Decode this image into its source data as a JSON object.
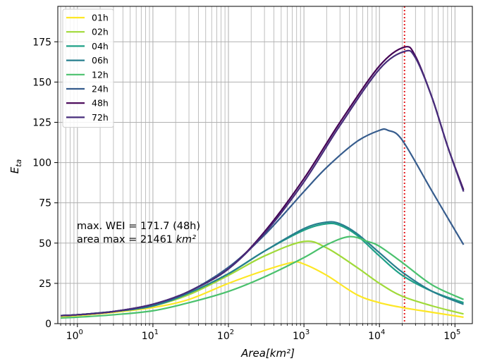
{
  "chart_data": {
    "type": "line",
    "title": "",
    "xlabel": "Area[km²]",
    "ylabel": "E_ta",
    "xscale": "log",
    "xlim": [
      0.55,
      170000
    ],
    "ylim": [
      0,
      197
    ],
    "xticks": [
      1,
      10,
      100,
      1000,
      10000,
      100000
    ],
    "xtick_labels": [
      {
        "base": "10",
        "exp": "0"
      },
      {
        "base": "10",
        "exp": "1"
      },
      {
        "base": "10",
        "exp": "2"
      },
      {
        "base": "10",
        "exp": "3"
      },
      {
        "base": "10",
        "exp": "4"
      },
      {
        "base": "10",
        "exp": "5"
      }
    ],
    "yticks": [
      0,
      25,
      50,
      75,
      100,
      125,
      150,
      175
    ],
    "ytick_labels": [
      "0",
      "25",
      "50",
      "75",
      "100",
      "125",
      "150",
      "175"
    ],
    "grid": true,
    "legend_position": "top-left",
    "vline": {
      "x": 21461,
      "color": "#e41a1c",
      "style": "dotted"
    },
    "annotation": {
      "line1": "max. WEI = 171.7 (48h)",
      "line2_prefix": "area max = 21461 ",
      "line2_unit": "km²"
    },
    "series": [
      {
        "name": "01h",
        "color": "#fde725",
        "x": [
          0.6,
          1,
          3,
          10,
          30,
          100,
          300,
          700,
          1000,
          2000,
          5000,
          10000,
          20000,
          50000,
          130000
        ],
        "y": [
          4.5,
          5,
          7,
          10,
          15,
          25,
          33,
          38,
          37,
          30,
          18,
          13,
          10,
          7,
          4
        ]
      },
      {
        "name": "02h",
        "color": "#a0da39",
        "x": [
          0.6,
          1,
          3,
          10,
          30,
          100,
          300,
          1000,
          2000,
          5000,
          10000,
          20000,
          50000,
          130000
        ],
        "y": [
          5,
          5.5,
          7.5,
          11,
          18,
          30,
          42,
          51,
          47,
          35,
          25,
          17,
          11,
          6
        ]
      },
      {
        "name": "04h",
        "color": "#1fa187",
        "x": [
          0.6,
          1,
          3,
          10,
          30,
          100,
          300,
          1000,
          2000,
          3000,
          5000,
          10000,
          20000,
          50000,
          130000
        ],
        "y": [
          5,
          5.5,
          7.5,
          11,
          19,
          31,
          45,
          58,
          62,
          61,
          55,
          42,
          30,
          20,
          13
        ]
      },
      {
        "name": "06h",
        "color": "#277f8e",
        "x": [
          0.6,
          1,
          3,
          10,
          30,
          100,
          300,
          1000,
          2000,
          3000,
          5000,
          10000,
          20000,
          50000,
          130000
        ],
        "y": [
          5,
          5.5,
          7.5,
          11,
          19,
          31,
          45,
          59,
          63,
          62,
          56,
          44,
          32,
          20,
          12
        ]
      },
      {
        "name": "12h",
        "color": "#4ac16d",
        "x": [
          0.6,
          1,
          3,
          10,
          30,
          100,
          300,
          1000,
          2000,
          4000,
          7000,
          10000,
          20000,
          50000,
          130000
        ],
        "y": [
          3.5,
          4,
          5.5,
          8,
          13,
          20,
          29,
          41,
          49,
          54,
          51,
          48,
          38,
          24,
          15
        ]
      },
      {
        "name": "24h",
        "color": "#365c8d",
        "x": [
          0.6,
          1,
          3,
          10,
          30,
          100,
          300,
          1000,
          2000,
          5000,
          10000,
          13000,
          20000,
          50000,
          130000
        ],
        "y": [
          5,
          5.5,
          7.5,
          12,
          20,
          35,
          55,
          82,
          97,
          113,
          120,
          120,
          114,
          82,
          49
        ]
      },
      {
        "name": "48h",
        "color": "#440154",
        "x": [
          0.6,
          1,
          3,
          10,
          30,
          100,
          300,
          1000,
          3000,
          10000,
          21461,
          30000,
          50000,
          80000,
          130000
        ],
        "y": [
          5,
          5.5,
          7.5,
          12,
          20,
          34,
          57,
          90,
          125,
          160,
          171.7,
          166,
          140,
          110,
          83
        ]
      },
      {
        "name": "72h",
        "color": "#472d7b",
        "x": [
          0.6,
          1,
          3,
          10,
          30,
          100,
          300,
          1000,
          3000,
          10000,
          21461,
          30000,
          50000,
          80000,
          130000
        ],
        "y": [
          5,
          5.5,
          7.5,
          12,
          20,
          34,
          56,
          88,
          123,
          158,
          169,
          165,
          140,
          110,
          82
        ]
      }
    ]
  }
}
